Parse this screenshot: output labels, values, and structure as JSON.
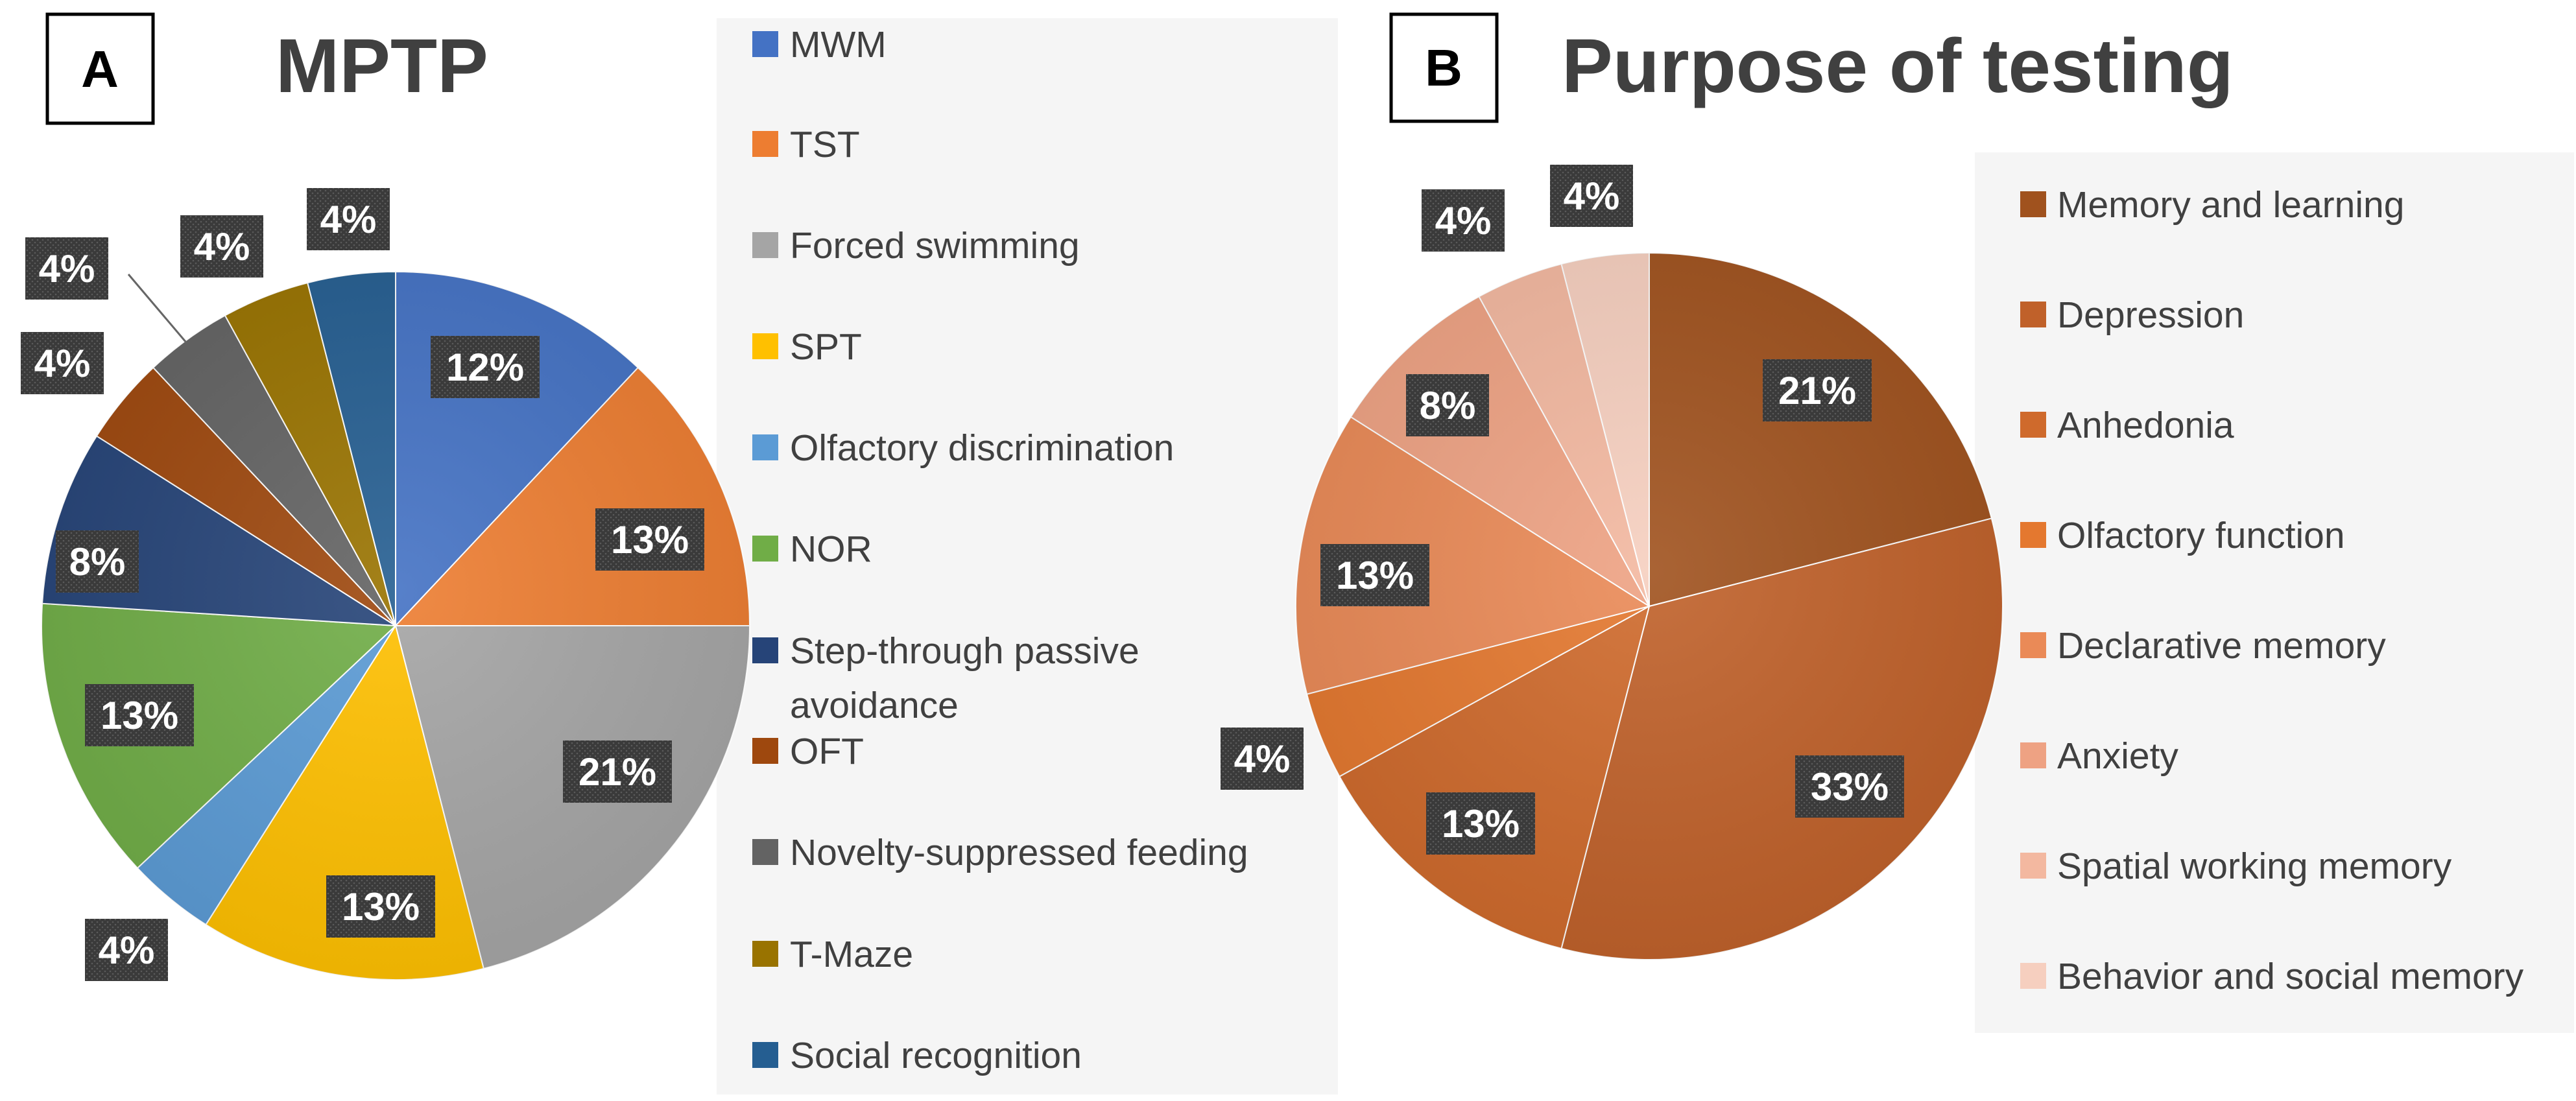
{
  "charts": [
    {
      "panel": "A",
      "chart_data": {
        "type": "pie",
        "title": "MPTP",
        "categories": [
          "MWM",
          "TST",
          "Forced swimming",
          "SPT",
          "Olfactory discrimination",
          "NOR",
          "Step-through passive avoidance",
          "OFT",
          "Novelty-suppressed feeding",
          "T-Maze",
          "Social recognition"
        ],
        "values": [
          12,
          13,
          21,
          13,
          4,
          13,
          8,
          4,
          4,
          4,
          4
        ],
        "labels": [
          "12%",
          "13%",
          "21%",
          "13%",
          "4%",
          "13%",
          "8%",
          "4%",
          "4%",
          "4%",
          "4%"
        ],
        "colors": [
          "#4472C4",
          "#ED7D31",
          "#A5A5A5",
          "#FFC000",
          "#5B9BD5",
          "#70AD47",
          "#264478",
          "#9E480E",
          "#636363",
          "#997300",
          "#255E91"
        ],
        "legend": "right"
      }
    },
    {
      "panel": "B",
      "chart_data": {
        "type": "pie",
        "title": "Purpose of testing",
        "categories": [
          "Memory and learning",
          "Depression",
          "Anhedonia",
          "Olfactory function",
          "Declarative memory",
          "Anxiety",
          "Spatial working memory",
          "Behavior and social memory"
        ],
        "values": [
          21,
          33,
          13,
          4,
          13,
          8,
          4,
          4
        ],
        "labels": [
          "21%",
          "33%",
          "13%",
          "4%",
          "13%",
          "8%",
          "4%",
          "4%"
        ],
        "colors": [
          "#A0521E",
          "#C0612A",
          "#CF6A2C",
          "#E4782F",
          "#EA8A57",
          "#EEA283",
          "#F3B8A0",
          "#F6CFBF"
        ],
        "legend": "right"
      }
    }
  ]
}
